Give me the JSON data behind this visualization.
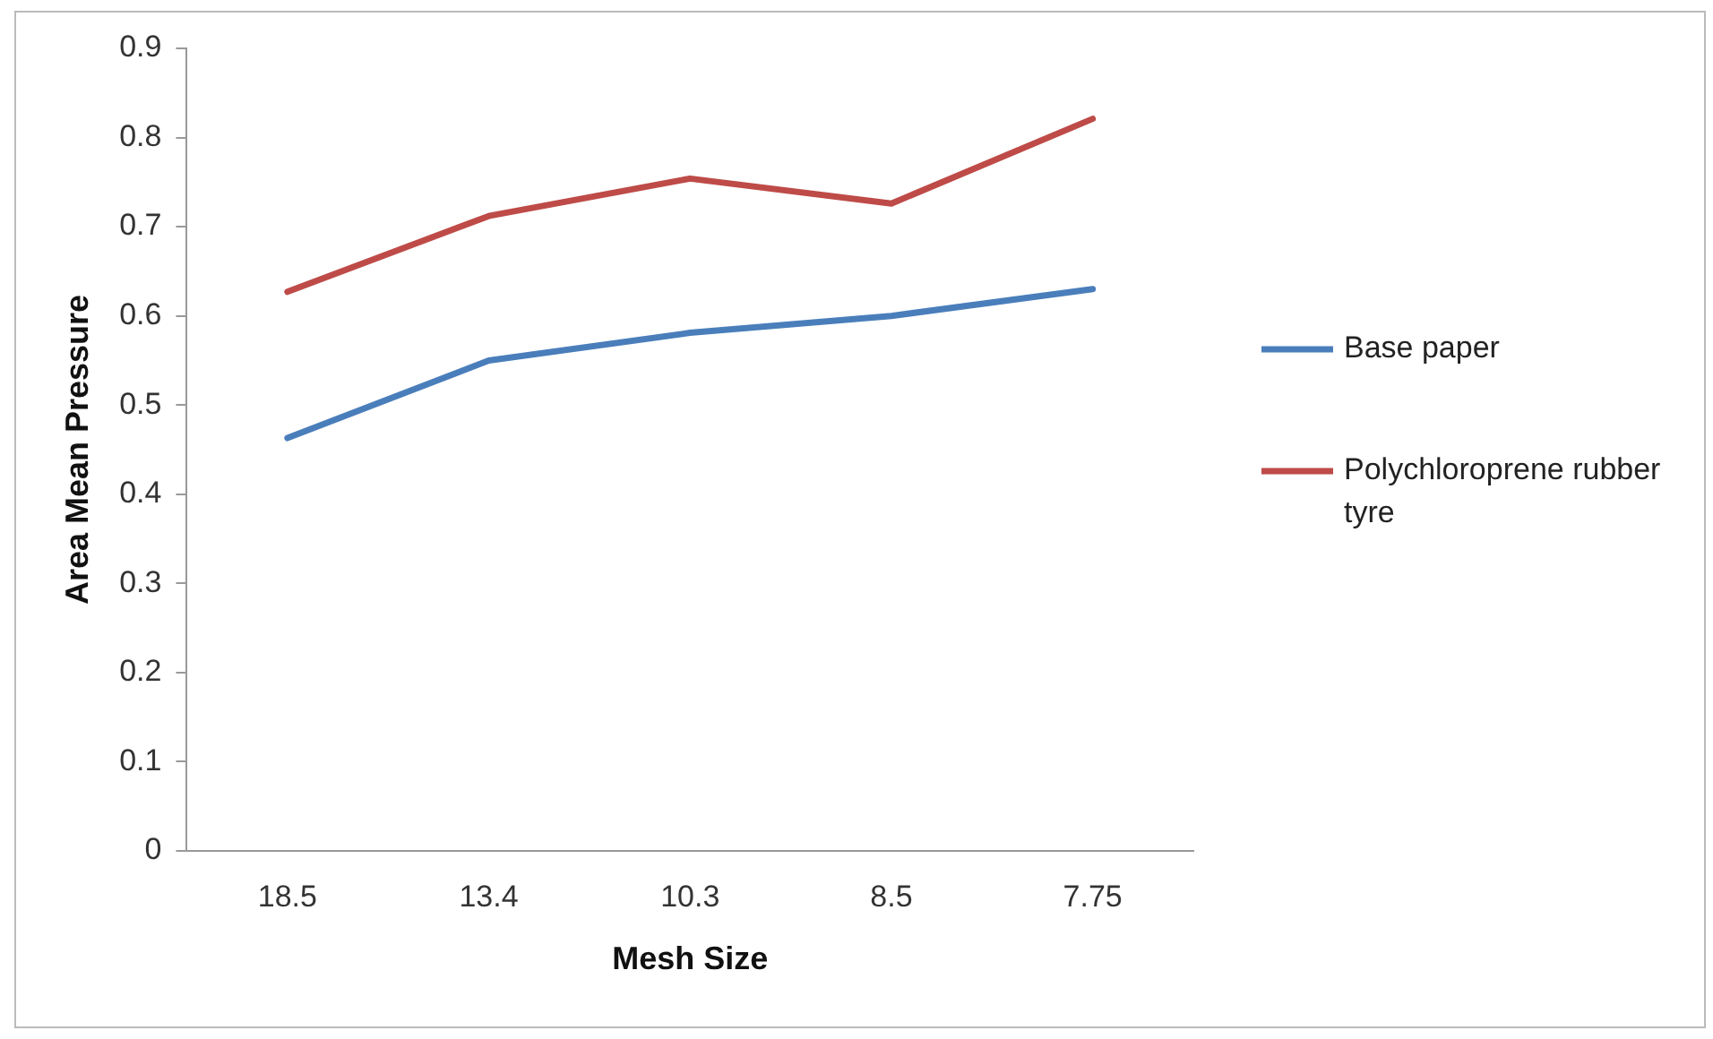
{
  "chart_data": {
    "type": "line",
    "xlabel": "Mesh Size",
    "ylabel": "Area Mean Pressure",
    "categories": [
      "18.5",
      "13.4",
      "10.3",
      "8.5",
      "7.75"
    ],
    "series": [
      {
        "name": "Base paper",
        "color": "#4a7ebb",
        "values": [
          0.463,
          0.55,
          0.581,
          0.6,
          0.63
        ]
      },
      {
        "name": "Polychloroprene rubber tyre",
        "color": "#be4b48",
        "values": [
          0.627,
          0.712,
          0.754,
          0.726,
          0.821
        ]
      }
    ],
    "ylim": [
      0,
      0.9
    ],
    "yticks": [
      0,
      0.1,
      0.2,
      0.3,
      0.4,
      0.5,
      0.6,
      0.7,
      0.8,
      0.9
    ],
    "grid": false,
    "legend": "right",
    "marker": "none",
    "line_style": "solid"
  }
}
